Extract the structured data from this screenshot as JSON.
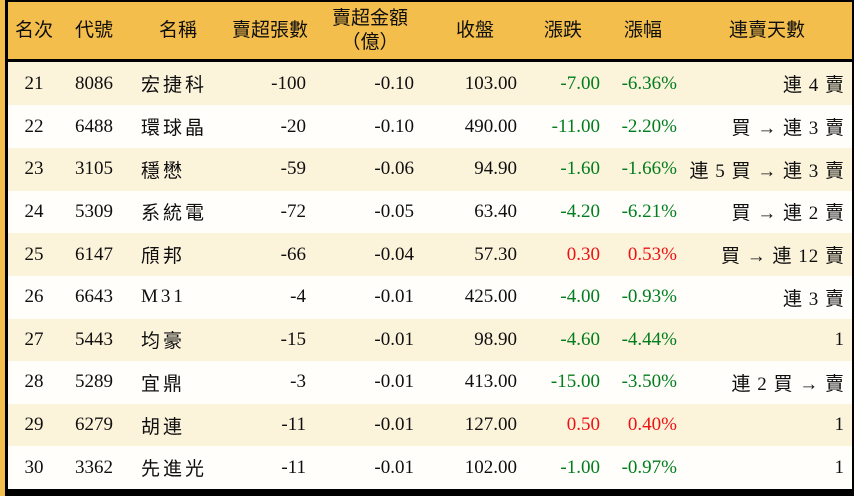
{
  "colors": {
    "page_bg": "#f4be4c",
    "header_bg": "#f4be4c",
    "row_bg": "#fffefb",
    "row_alt_bg": "#fcf3db",
    "up_red": "#ee1111",
    "down_green": "#007d1c",
    "text": "#0f0f0f",
    "border": "#000000"
  },
  "chart_data": {
    "type": "table",
    "title": "",
    "columns": [
      {
        "key": "rank",
        "label": "名次"
      },
      {
        "key": "code",
        "label": "代號"
      },
      {
        "key": "name",
        "label": "名稱"
      },
      {
        "key": "sell_volume",
        "label": "賣超張數"
      },
      {
        "key": "sell_amount",
        "label": "賣超金額",
        "label2": "（億）"
      },
      {
        "key": "close",
        "label": "收盤"
      },
      {
        "key": "change",
        "label": "漲跌"
      },
      {
        "key": "change_pct",
        "label": "漲幅"
      },
      {
        "key": "streak",
        "label": "連賣天數"
      }
    ],
    "rows": [
      {
        "rank": "21",
        "code": "8086",
        "name": "宏捷科",
        "sell_volume": "-100",
        "sell_amount": "-0.10",
        "close": "103.00",
        "change": "-7.00",
        "change_pct": "-6.36%",
        "streak": "連 4 賣",
        "trend": "down"
      },
      {
        "rank": "22",
        "code": "6488",
        "name": "環球晶",
        "sell_volume": "-20",
        "sell_amount": "-0.10",
        "close": "490.00",
        "change": "-11.00",
        "change_pct": "-2.20%",
        "streak": "買 → 連 3 賣",
        "trend": "down"
      },
      {
        "rank": "23",
        "code": "3105",
        "name": "穩懋",
        "sell_volume": "-59",
        "sell_amount": "-0.06",
        "close": "94.90",
        "change": "-1.60",
        "change_pct": "-1.66%",
        "streak": "連 5 買 → 連 3 賣",
        "trend": "down"
      },
      {
        "rank": "24",
        "code": "5309",
        "name": "系統電",
        "sell_volume": "-72",
        "sell_amount": "-0.05",
        "close": "63.40",
        "change": "-4.20",
        "change_pct": "-6.21%",
        "streak": "買 → 連 2 賣",
        "trend": "down"
      },
      {
        "rank": "25",
        "code": "6147",
        "name": "頎邦",
        "sell_volume": "-66",
        "sell_amount": "-0.04",
        "close": "57.30",
        "change": "0.30",
        "change_pct": "0.53%",
        "streak": "買 → 連 12 賣",
        "trend": "up"
      },
      {
        "rank": "26",
        "code": "6643",
        "name": "M31",
        "sell_volume": "-4",
        "sell_amount": "-0.01",
        "close": "425.00",
        "change": "-4.00",
        "change_pct": "-0.93%",
        "streak": "連 3 賣",
        "trend": "down"
      },
      {
        "rank": "27",
        "code": "5443",
        "name": "均豪",
        "sell_volume": "-15",
        "sell_amount": "-0.01",
        "close": "98.90",
        "change": "-4.60",
        "change_pct": "-4.44%",
        "streak": "1",
        "trend": "down"
      },
      {
        "rank": "28",
        "code": "5289",
        "name": "宜鼎",
        "sell_volume": "-3",
        "sell_amount": "-0.01",
        "close": "413.00",
        "change": "-15.00",
        "change_pct": "-3.50%",
        "streak": "連 2 買 → 賣",
        "trend": "down"
      },
      {
        "rank": "29",
        "code": "6279",
        "name": "胡連",
        "sell_volume": "-11",
        "sell_amount": "-0.01",
        "close": "127.00",
        "change": "0.50",
        "change_pct": "0.40%",
        "streak": "1",
        "trend": "up"
      },
      {
        "rank": "30",
        "code": "3362",
        "name": "先進光",
        "sell_volume": "-11",
        "sell_amount": "-0.01",
        "close": "102.00",
        "change": "-1.00",
        "change_pct": "-0.97%",
        "streak": "1",
        "trend": "down"
      }
    ]
  }
}
